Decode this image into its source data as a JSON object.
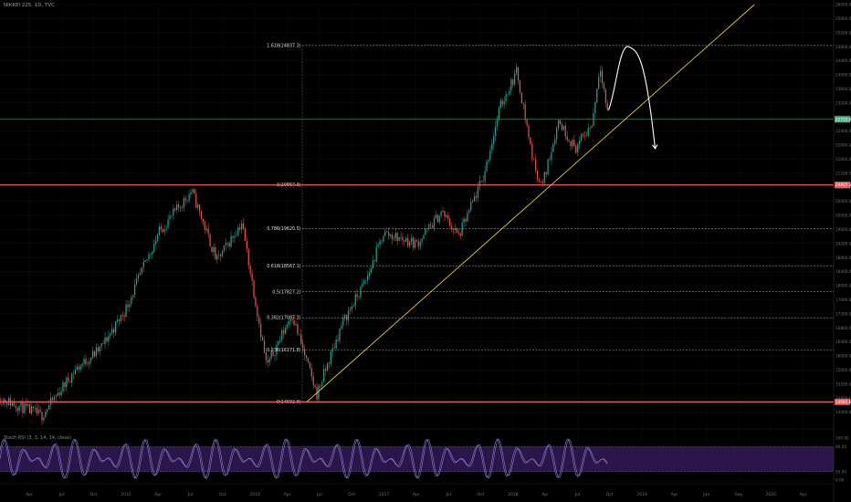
{
  "header": {
    "symbol": "NIKKEI 225, 1D, TVC"
  },
  "stoch": {
    "title": "Stoch RSI (3, 3, 14, 14, close)"
  },
  "colors": {
    "background": "#000000",
    "up": "#26a69a",
    "down": "#ef5350",
    "trendline": "#e6c94b",
    "fib_line": "#9a9a9a",
    "red_level": "#e35d5d",
    "price_line": "#3d8a5e",
    "price_badge": "#4caf7d",
    "stoch_band": "#2c1548",
    "stoch_line": "#8a7fd1",
    "arrow": "#ffffff"
  },
  "chart_data": {
    "type": "candlestick",
    "title": "",
    "x": {
      "ticks": [
        "Apr",
        "Jul",
        "Oct",
        "2015",
        "Apr",
        "Jul",
        "Oct",
        "2016",
        "Apr",
        "Jul",
        "Oct",
        "2017",
        "Apr",
        "Jul",
        "Oct",
        "2018",
        "Apr",
        "Jul",
        "Oct",
        "2019",
        "Apr",
        "Jun",
        "Sep",
        "2020",
        "Apr"
      ]
    },
    "y_axis": {
      "range": [
        14000,
        26000
      ],
      "ticks": [
        "26000.0",
        "25600.0",
        "25200.0",
        "24800.0",
        "24400.0",
        "24000.0",
        "23600.0",
        "23200.0",
        "22800.0",
        "22400.0",
        "22000.0",
        "21600.0",
        "21200.0",
        "20800.0",
        "20400.0",
        "20000.0",
        "19600.0",
        "19200.0",
        "18800.0",
        "18400.0",
        "18000.0",
        "17600.0",
        "17200.0",
        "16800.0",
        "16400.0",
        "16000.0",
        "15600.0",
        "15200.0",
        "14800.0",
        "14400.0"
      ]
    },
    "price_path": [
      {
        "t": 0.0,
        "p": 14800
      },
      {
        "t": 0.05,
        "p": 14300
      },
      {
        "t": 0.09,
        "p": 15600
      },
      {
        "t": 0.12,
        "p": 16200
      },
      {
        "t": 0.15,
        "p": 17300
      },
      {
        "t": 0.19,
        "p": 19500
      },
      {
        "t": 0.23,
        "p": 20700
      },
      {
        "t": 0.26,
        "p": 18700
      },
      {
        "t": 0.29,
        "p": 19800
      },
      {
        "t": 0.32,
        "p": 15700
      },
      {
        "t": 0.35,
        "p": 17200
      },
      {
        "t": 0.38,
        "p": 14900
      },
      {
        "t": 0.41,
        "p": 16900
      },
      {
        "t": 0.44,
        "p": 18200
      },
      {
        "t": 0.46,
        "p": 19500
      },
      {
        "t": 0.5,
        "p": 19200
      },
      {
        "t": 0.53,
        "p": 20100
      },
      {
        "t": 0.55,
        "p": 19400
      },
      {
        "t": 0.58,
        "p": 21100
      },
      {
        "t": 0.6,
        "p": 23100
      },
      {
        "t": 0.62,
        "p": 24100
      },
      {
        "t": 0.64,
        "p": 21500
      },
      {
        "t": 0.65,
        "p": 20800
      },
      {
        "t": 0.67,
        "p": 22700
      },
      {
        "t": 0.69,
        "p": 21900
      },
      {
        "t": 0.71,
        "p": 22600
      },
      {
        "t": 0.72,
        "p": 24300
      },
      {
        "t": 0.73,
        "p": 22700
      }
    ],
    "fibonacci": [
      {
        "label": "1.618(24837.3)",
        "value": 24837.3
      },
      {
        "label": "1(20867.3)",
        "value": 20867.3
      },
      {
        "label": "0.786(19620.5)",
        "value": 19620.5
      },
      {
        "label": "0.618(18567.1)",
        "value": 18567.1
      },
      {
        "label": "0.5(17827.2)",
        "value": 17827.2
      },
      {
        "label": "0.382(17087.3)",
        "value": 17087.3
      },
      {
        "label": "0.236(16171.8)",
        "value": 16171.8
      },
      {
        "label": "0(14692.8)",
        "value": 14692.8
      }
    ],
    "horizontal_levels": [
      {
        "value": 20867.3,
        "label": "20867.3"
      },
      {
        "value": 14692.8,
        "label": "14692.8"
      }
    ],
    "last_price": {
      "value": 22733.8,
      "label": "22733.8"
    },
    "trendline": {
      "from": {
        "t": 0.368,
        "p": 14692.8
      },
      "to": {
        "t": 0.905,
        "p": 26000
      }
    },
    "projection_arrow": {
      "peak": 24800,
      "end": 21900
    },
    "stochastic": {
      "upper": 80,
      "lower": 20,
      "range": [
        0,
        100
      ],
      "ticks": [
        "100.00",
        "80.00",
        "20.00",
        "0.00"
      ]
    }
  }
}
